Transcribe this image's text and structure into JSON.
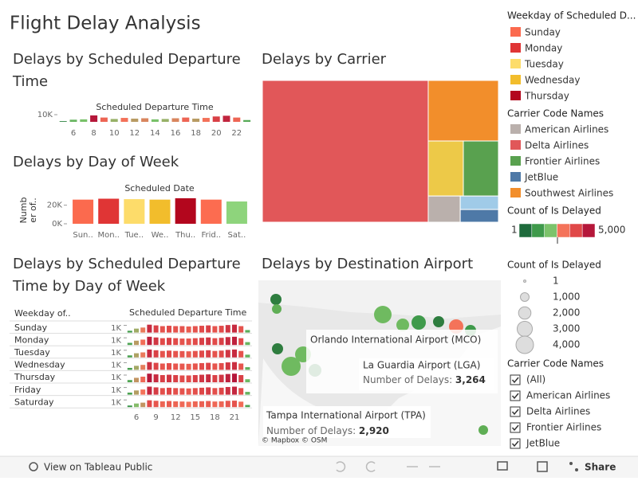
{
  "header": {
    "title": "Flight Delay Analysis"
  },
  "hour_chart": {
    "title_lines": [
      "Delays by Scheduled Departure",
      "Time"
    ],
    "axis_title": "Scheduled Departure Time",
    "hours": [
      5,
      6,
      7,
      8,
      9,
      10,
      11,
      12,
      13,
      14,
      15,
      16,
      17,
      18,
      19,
      20,
      21,
      22,
      23
    ],
    "values": [
      1000,
      3000,
      3500,
      9000,
      6000,
      4000,
      5500,
      4500,
      5000,
      3500,
      4000,
      5000,
      6000,
      4500,
      5500,
      7500,
      8500,
      6000,
      2500
    ],
    "ylim": [
      0,
      10000
    ],
    "yticks": [
      {
        "value": 10000,
        "label": "10K"
      }
    ],
    "xticks": [
      6,
      8,
      10,
      12,
      14,
      16,
      18,
      20,
      22
    ]
  },
  "day_chart": {
    "title": "Delays by Day of Week",
    "axis_title": "Scheduled Date",
    "y_label_lines": [
      "Numb",
      "er of.."
    ],
    "categories": [
      "Sun..",
      "Mon..",
      "Tue..",
      "We..",
      "Thu..",
      "Frid..",
      "Sat.."
    ],
    "values": [
      26000,
      27000,
      26500,
      26000,
      27500,
      26000,
      24000
    ],
    "colors": [
      "#fb6a4e",
      "#e03535",
      "#fddc6a",
      "#f2bd2c",
      "#b3061d",
      "#fc6c50",
      "#8ed47c"
    ],
    "ylim": [
      0,
      30000
    ],
    "yticks": [
      {
        "value": 0,
        "label": "0K"
      },
      {
        "value": 20000,
        "label": "20K"
      }
    ]
  },
  "carrier_chart": {
    "title": "Delays by Carrier",
    "values": [
      36500,
      6600,
      3000,
      3000,
      1300,
      800,
      750
    ],
    "colors": [
      "#e15759",
      "#f28e2b",
      "#edc948",
      "#59a14f",
      "#bab0ac",
      "#a0cbe8",
      "#4e79a7"
    ]
  },
  "heatmap": {
    "title_lines": [
      "Delays by Scheduled Departure",
      "Time by Day of Week"
    ],
    "row_header": "Weekday of..",
    "col_header": "Scheduled Departure Time",
    "rows": [
      "Sunday",
      "Monday",
      "Tuesday",
      "Wednesday",
      "Thursday",
      "Friday",
      "Saturday"
    ],
    "tick_label": {
      "value": 1000,
      "label": "1K"
    },
    "hours": [
      5,
      6,
      7,
      8,
      9,
      10,
      11,
      12,
      13,
      14,
      15,
      16,
      17,
      18,
      19,
      20,
      21,
      22,
      23
    ],
    "xticks": [
      6,
      9,
      12,
      15,
      18,
      21
    ],
    "ylim": [
      0,
      1400
    ],
    "values": [
      [
        250,
        550,
        700,
        1100,
        1000,
        900,
        950,
        900,
        900,
        850,
        900,
        950,
        1000,
        900,
        950,
        1050,
        1100,
        900,
        350
      ],
      [
        300,
        600,
        750,
        1150,
        1050,
        950,
        1000,
        950,
        900,
        900,
        950,
        1000,
        1050,
        950,
        1000,
        1100,
        1150,
        950,
        400
      ],
      [
        280,
        580,
        700,
        1100,
        1000,
        900,
        950,
        900,
        880,
        850,
        900,
        950,
        1000,
        900,
        950,
        1050,
        1100,
        900,
        380
      ],
      [
        270,
        560,
        690,
        1080,
        980,
        880,
        930,
        880,
        870,
        840,
        890,
        940,
        980,
        890,
        940,
        1040,
        1080,
        880,
        370
      ],
      [
        310,
        620,
        780,
        1200,
        1100,
        1000,
        1050,
        1000,
        950,
        950,
        1000,
        1050,
        1100,
        1000,
        1050,
        1150,
        1200,
        1000,
        420
      ],
      [
        290,
        590,
        720,
        1120,
        1020,
        920,
        970,
        920,
        900,
        870,
        920,
        970,
        1020,
        920,
        970,
        1070,
        1120,
        920,
        390
      ],
      [
        220,
        500,
        620,
        950,
        880,
        800,
        850,
        800,
        780,
        750,
        800,
        820,
        850,
        780,
        800,
        880,
        900,
        760,
        300
      ]
    ]
  },
  "map": {
    "title": "Delays by Destination Airport",
    "tooltips": [
      {
        "name": "Orlando International Airport (MCO)"
      },
      {
        "name": "La Guardia Airport (LGA)",
        "label": "Number of Delays: ",
        "value": "3,264"
      },
      {
        "name": "Tampa International Airport (TPA)",
        "label": "Number of Delays: ",
        "value": "2,920"
      }
    ],
    "attribution": "© Mapbox © OSM"
  },
  "legends": {
    "weekday": {
      "title": "Weekday of Scheduled D...",
      "items": [
        "Sunday",
        "Monday",
        "Tuesday",
        "Wednesday",
        "Thursday"
      ],
      "colors": [
        "#fb6a4e",
        "#e03535",
        "#fddc6a",
        "#f2bd2c",
        "#b3061d"
      ]
    },
    "carrier": {
      "title": "Carrier Code Names",
      "items": [
        "American Airlines",
        "Delta Airlines",
        "Frontier Airlines",
        "JetBlue",
        "Southwest Airlines"
      ],
      "colors": [
        "#bab0ac",
        "#e15759",
        "#59a14f",
        "#4e79a7",
        "#f28e2b"
      ]
    },
    "count": {
      "title": "Count of Is Delayed",
      "min_label": "1",
      "max_label": "5,000",
      "colors": [
        "#1e6b3c",
        "#3f9a4b",
        "#7cc36b",
        "#f4735a",
        "#e04848",
        "#b5173a"
      ]
    },
    "size": {
      "title": "Count of Is Delayed",
      "items": [
        {
          "value": 1,
          "label": "1"
        },
        {
          "value": 1000,
          "label": "1,000"
        },
        {
          "value": 2000,
          "label": "2,000"
        },
        {
          "value": 3000,
          "label": "3,000"
        },
        {
          "value": 4000,
          "label": "4,000"
        }
      ]
    },
    "filter": {
      "title": "Carrier Code Names",
      "items": [
        "(All)",
        "American Airlines",
        "Delta Airlines",
        "Frontier Airlines",
        "JetBlue"
      ]
    }
  },
  "toolbar": {
    "view": "View on Tableau Public",
    "share": "Share"
  }
}
